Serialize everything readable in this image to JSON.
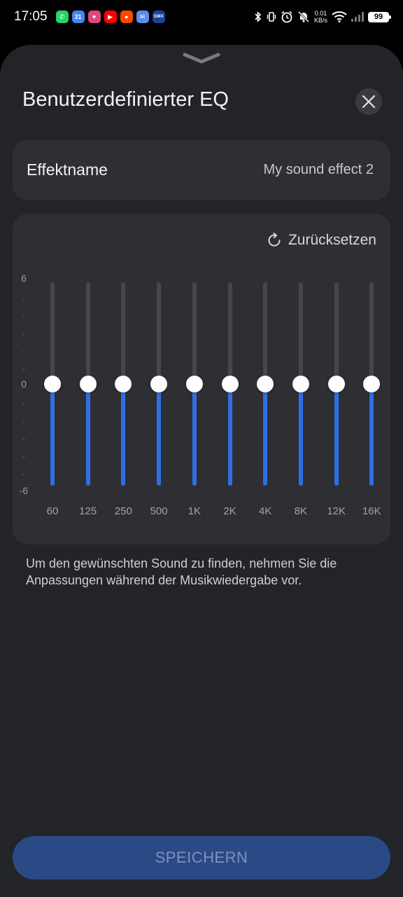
{
  "status_bar": {
    "time": "17:05",
    "apps": [
      {
        "name": "whatsapp-icon",
        "glyph": "✆",
        "color": "#25D366"
      },
      {
        "name": "calendar-icon",
        "glyph": "31",
        "color": "#4285F4"
      },
      {
        "name": "heart-app-icon",
        "glyph": "♥",
        "color": "#E0457B"
      },
      {
        "name": "youtube-icon",
        "glyph": "▶",
        "color": "#FF0000"
      },
      {
        "name": "reddit-icon",
        "glyph": "●",
        "color": "#FF4500"
      },
      {
        "name": "mail-icon",
        "glyph": "✉",
        "color": "#5B8DEF"
      },
      {
        "name": "gmx-icon",
        "glyph": "GMX",
        "color": "#1C449B"
      }
    ],
    "net_speed_value": "0.01",
    "net_speed_unit": "KB/s",
    "battery": "99"
  },
  "sheet": {
    "title": "Benutzerdefinierter EQ",
    "effect_label": "Effektname",
    "effect_value": "My sound effect 2",
    "reset_label": "Zurücksetzen",
    "scale_max": "6",
    "scale_mid": "0",
    "scale_min": "-6",
    "bands": [
      {
        "label": "60",
        "value": 0
      },
      {
        "label": "125",
        "value": 0
      },
      {
        "label": "250",
        "value": 0
      },
      {
        "label": "500",
        "value": 0
      },
      {
        "label": "1K",
        "value": 0
      },
      {
        "label": "2K",
        "value": 0
      },
      {
        "label": "4K",
        "value": 0
      },
      {
        "label": "8K",
        "value": 0
      },
      {
        "label": "12K",
        "value": 0
      },
      {
        "label": "16K",
        "value": 0
      }
    ],
    "hint": "Um den gewünschten Sound zu finden, nehmen Sie die Anpassungen während der Musikwiedergabe vor.",
    "save_label": "SPEICHERN"
  },
  "colors": {
    "accent": "#2f6fe6",
    "sheet_bg": "#232427",
    "card_bg": "#2e2f33",
    "save_bg": "#2a4a86"
  }
}
